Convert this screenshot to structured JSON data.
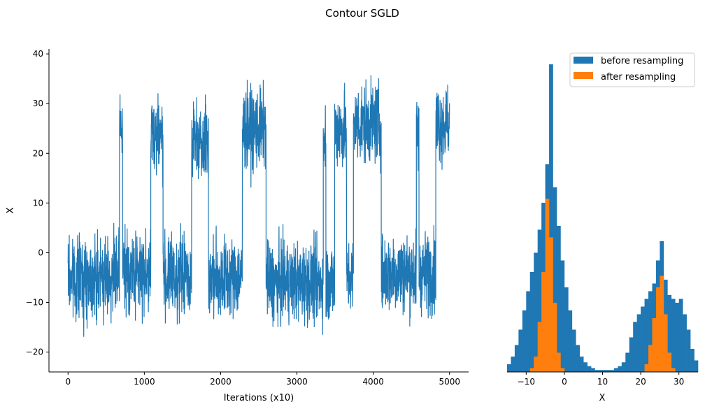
{
  "title": "Contour SGLD",
  "colors": {
    "trace": "#1f77b4",
    "before": "#1f77b4",
    "after": "#ff7f0e",
    "axis": "#000000"
  },
  "chart_data": [
    {
      "type": "line",
      "xlabel": "Iterations (x10)",
      "ylabel": "X",
      "xlim": [
        -250,
        5250
      ],
      "ylim": [
        -24,
        41
      ],
      "xticks": [
        0,
        1000,
        2000,
        3000,
        4000,
        5000
      ],
      "yticks": [
        -20,
        -10,
        0,
        10,
        20,
        30,
        40
      ],
      "grid": false,
      "series": [
        {
          "regimes": [
            {
              "start": 0,
              "end": 675,
              "level": -5,
              "spread": 4
            },
            {
              "start": 675,
              "end": 715,
              "level": 25,
              "spread": 4
            },
            {
              "start": 715,
              "end": 1085,
              "level": -4,
              "spread": 4
            },
            {
              "start": 1085,
              "end": 1245,
              "level": 24,
              "spread": 4
            },
            {
              "start": 1245,
              "end": 1620,
              "level": -5,
              "spread": 4
            },
            {
              "start": 1620,
              "end": 1840,
              "level": 23,
              "spread": 4
            },
            {
              "start": 1840,
              "end": 2285,
              "level": -5,
              "spread": 4
            },
            {
              "start": 2285,
              "end": 2595,
              "level": 25,
              "spread": 4
            },
            {
              "start": 2595,
              "end": 3345,
              "level": -6,
              "spread": 4
            },
            {
              "start": 3345,
              "end": 3380,
              "level": 23,
              "spread": 4
            },
            {
              "start": 3380,
              "end": 3495,
              "level": -6,
              "spread": 4
            },
            {
              "start": 3495,
              "end": 3650,
              "level": 25,
              "spread": 4
            },
            {
              "start": 3650,
              "end": 3740,
              "level": -5,
              "spread": 4
            },
            {
              "start": 3740,
              "end": 4105,
              "level": 26,
              "spread": 4
            },
            {
              "start": 4105,
              "end": 4565,
              "level": -4,
              "spread": 4
            },
            {
              "start": 4565,
              "end": 4600,
              "level": 24,
              "spread": 4
            },
            {
              "start": 4600,
              "end": 4820,
              "level": -4,
              "spread": 4
            },
            {
              "start": 4820,
              "end": 5000,
              "level": 26,
              "spread": 4
            }
          ],
          "min": -20.5,
          "max": 38
        }
      ]
    },
    {
      "type": "bar",
      "subtype": "histogram",
      "xlabel": "X",
      "xlim": [
        -15,
        35
      ],
      "xticks": [
        -10,
        0,
        10,
        20,
        30
      ],
      "legend": "top-right",
      "series": [
        {
          "name": "before resampling",
          "x": [
            -15,
            -14,
            -13,
            -12,
            -11,
            -10,
            -9,
            -8,
            -7,
            -6,
            -5,
            -4,
            -3,
            -2,
            -1,
            0,
            1,
            2,
            3,
            4,
            5,
            6,
            7,
            8,
            9,
            10,
            11,
            12,
            13,
            14,
            15,
            16,
            17,
            18,
            19,
            20,
            21,
            22,
            23,
            24,
            25,
            26,
            27,
            28,
            29,
            30,
            31,
            32,
            33,
            34
          ],
          "values": [
            4,
            8,
            14,
            22,
            32,
            42,
            52,
            62,
            74,
            88,
            108,
            160,
            96,
            76,
            58,
            44,
            32,
            22,
            14,
            8,
            5,
            3,
            2,
            1,
            1,
            1,
            1,
            1,
            2,
            3,
            5,
            10,
            18,
            26,
            30,
            34,
            38,
            42,
            46,
            58,
            68,
            48,
            40,
            38,
            36,
            38,
            30,
            22,
            12,
            6
          ]
        },
        {
          "name": "after resampling",
          "x": [
            -9,
            -8,
            -7,
            -6,
            -5,
            -4,
            -3,
            -2,
            -1,
            21,
            22,
            23,
            24,
            25,
            26,
            27,
            28
          ],
          "values": [
            2,
            8,
            26,
            52,
            90,
            70,
            36,
            10,
            2,
            4,
            14,
            28,
            44,
            50,
            30,
            10,
            2
          ]
        }
      ]
    }
  ]
}
